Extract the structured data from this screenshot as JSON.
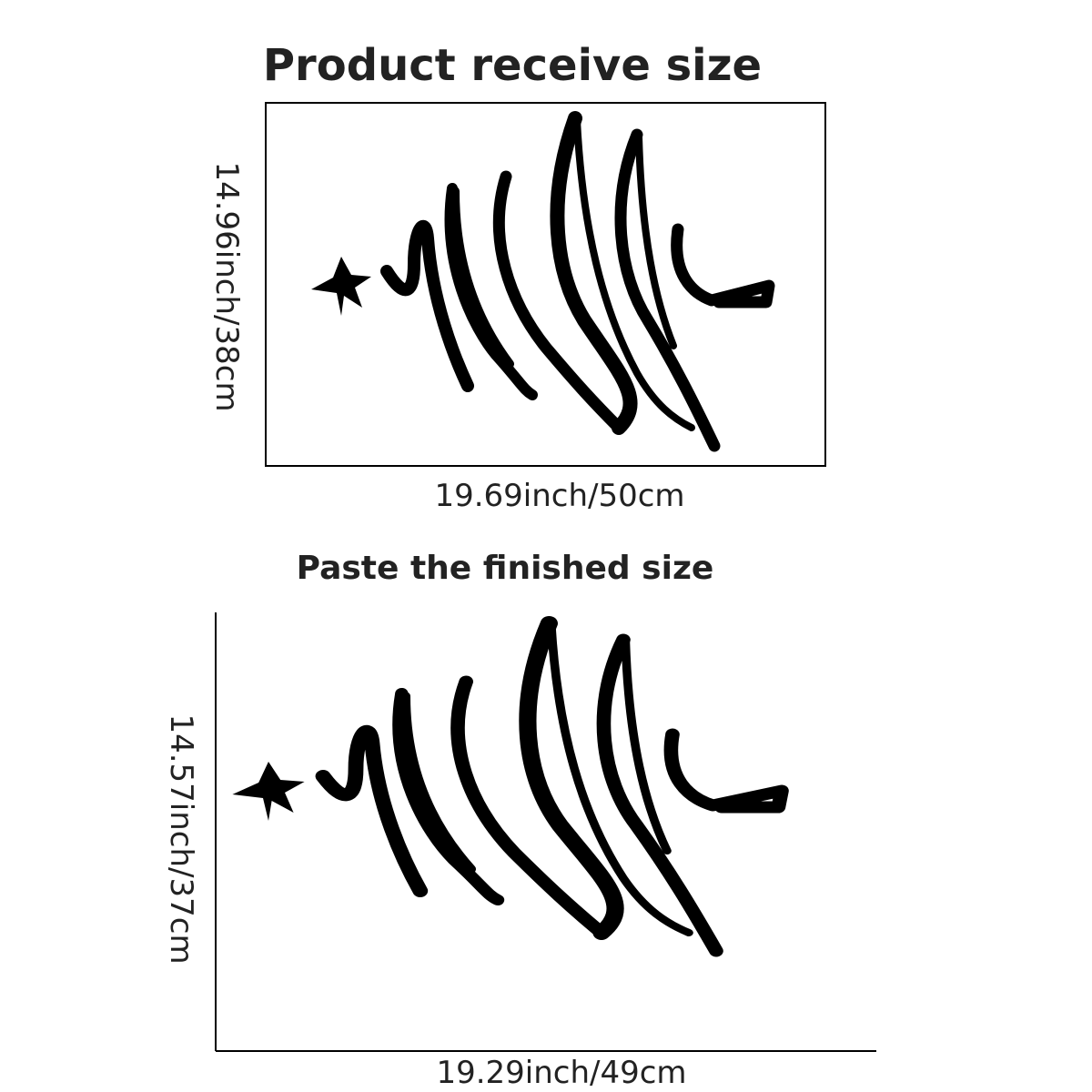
{
  "top": {
    "title": "Product receive size",
    "height_label": "14.96inch/38cm",
    "width_label": "19.69inch/50cm"
  },
  "bottom": {
    "title": "Paste the finished size",
    "height_label": "14.57inch/37cm",
    "width_label": "19.29inch/49cm"
  }
}
